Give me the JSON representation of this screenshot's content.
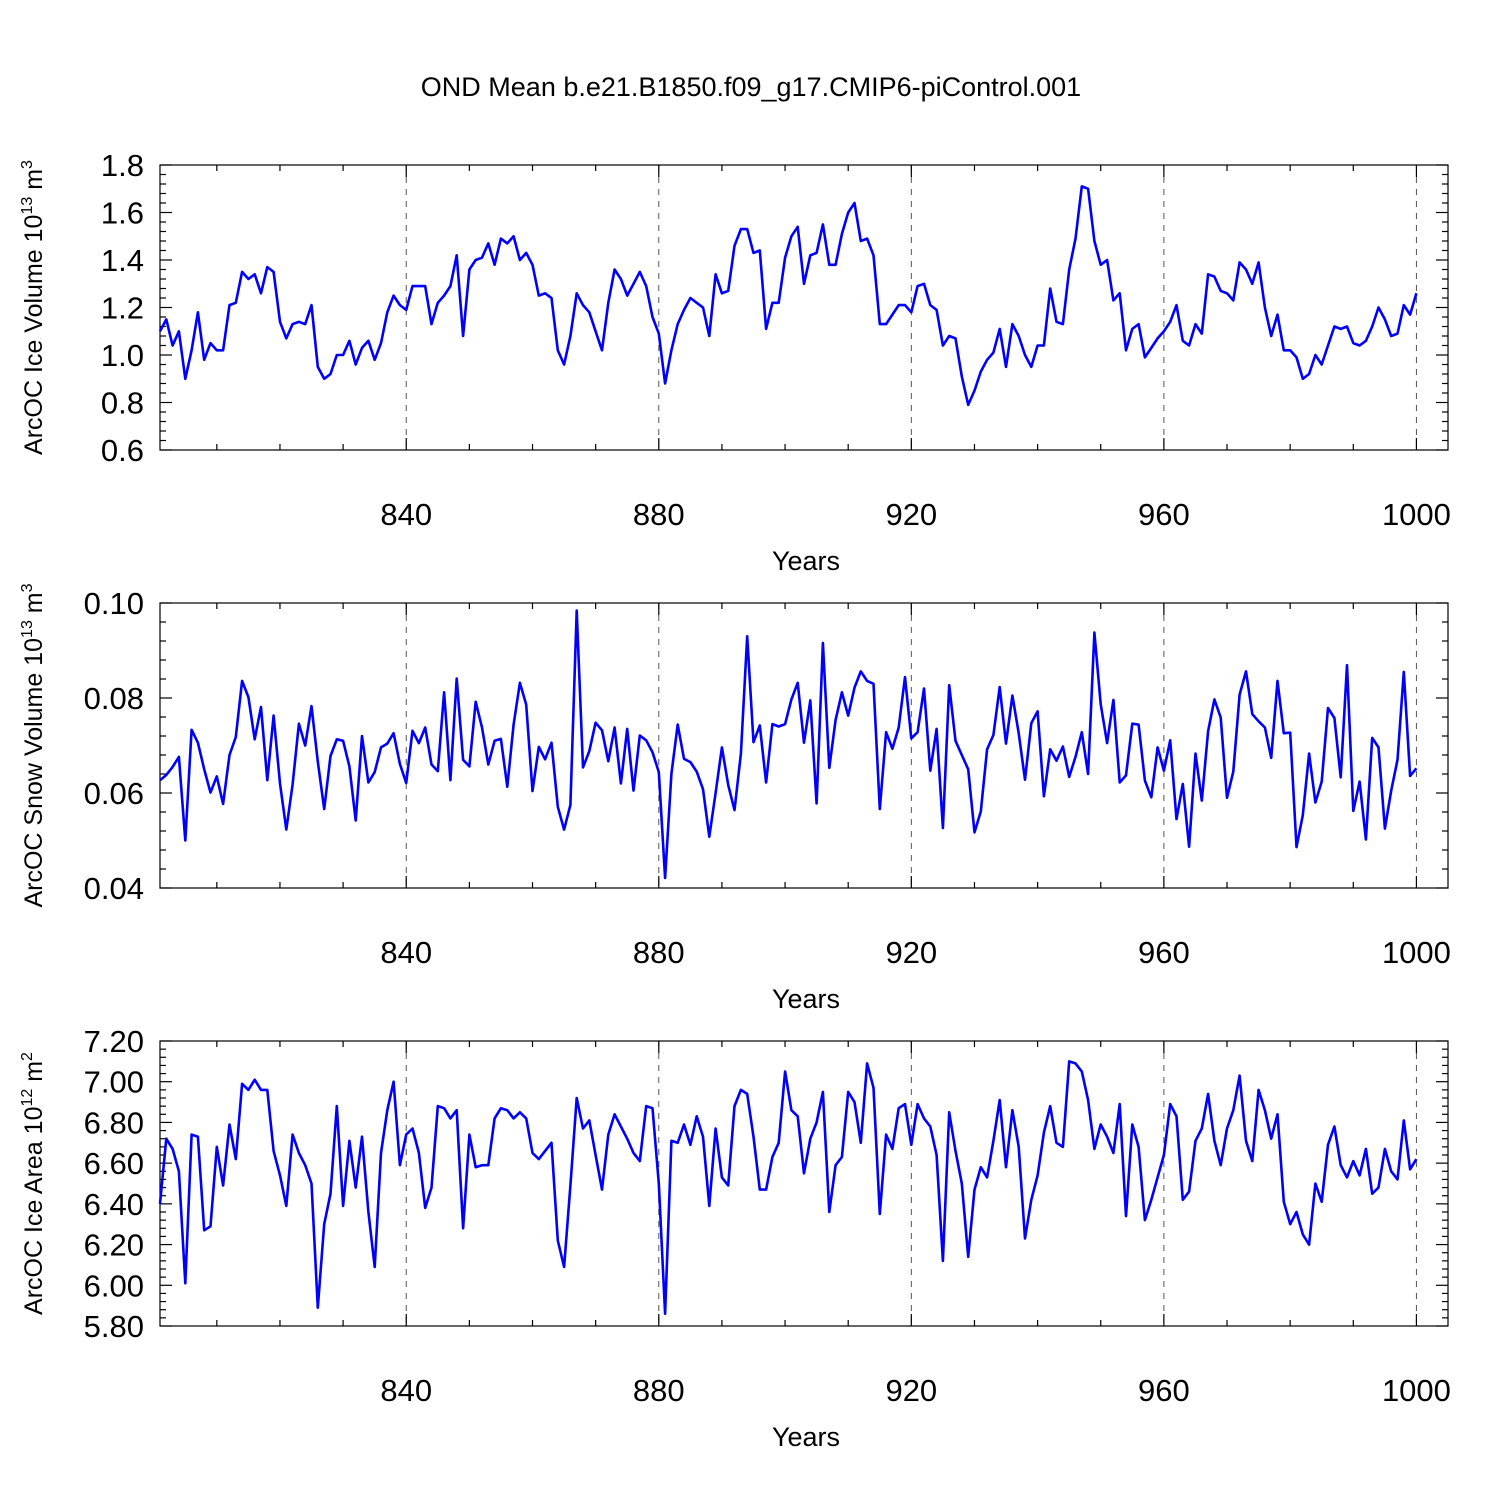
{
  "chart_data": [
    {
      "type": "line",
      "title": "OND Mean b.e21.B1850.f09_g17.CMIP6-piControl.001",
      "xlabel": "Years",
      "ylabel": "ArcOC Ice Volume 10",
      "ylabel_exp": "13",
      "ylabel_unit": " m",
      "ylabel_unit_exp": "3",
      "xlim": [
        801,
        1005
      ],
      "ylim": [
        0.6,
        1.8
      ],
      "xticks": [
        840,
        880,
        920,
        960,
        1000
      ],
      "xtick_labels": [
        "840",
        "880",
        "920",
        "960",
        "1000"
      ],
      "yticks": [
        0.6,
        0.8,
        1.0,
        1.2,
        1.4,
        1.6,
        1.8
      ],
      "ytick_labels": [
        "0.6",
        "0.8",
        "1.0",
        "1.2",
        "1.4",
        "1.6",
        "1.8"
      ],
      "grid": "dashed vertical at major x ticks",
      "series": [
        {
          "name": "ArcOC Ice Volume",
          "color": "#0000ff",
          "x_start": 801,
          "values": [
            1.1,
            1.15,
            1.04,
            1.1,
            0.9,
            1.02,
            1.18,
            0.98,
            1.05,
            1.02,
            1.02,
            1.21,
            1.22,
            1.35,
            1.32,
            1.34,
            1.26,
            1.37,
            1.35,
            1.14,
            1.07,
            1.13,
            1.14,
            1.13,
            1.21,
            0.95,
            0.9,
            0.92,
            1.0,
            1.0,
            1.06,
            0.96,
            1.03,
            1.06,
            0.98,
            1.05,
            1.18,
            1.25,
            1.21,
            1.19,
            1.29,
            1.29,
            1.29,
            1.13,
            1.22,
            1.25,
            1.29,
            1.42,
            1.08,
            1.36,
            1.4,
            1.41,
            1.47,
            1.38,
            1.49,
            1.47,
            1.5,
            1.4,
            1.43,
            1.38,
            1.25,
            1.26,
            1.24,
            1.02,
            0.96,
            1.08,
            1.26,
            1.21,
            1.18,
            1.1,
            1.02,
            1.22,
            1.36,
            1.32,
            1.25,
            1.3,
            1.35,
            1.29,
            1.16,
            1.09,
            0.88,
            1.02,
            1.13,
            1.19,
            1.24,
            1.22,
            1.2,
            1.08,
            1.34,
            1.26,
            1.27,
            1.46,
            1.53,
            1.53,
            1.43,
            1.44,
            1.11,
            1.22,
            1.22,
            1.41,
            1.5,
            1.54,
            1.3,
            1.42,
            1.43,
            1.55,
            1.38,
            1.38,
            1.51,
            1.6,
            1.64,
            1.48,
            1.49,
            1.42,
            1.13,
            1.13,
            1.17,
            1.21,
            1.21,
            1.18,
            1.29,
            1.3,
            1.21,
            1.19,
            1.04,
            1.08,
            1.07,
            0.91,
            0.79,
            0.85,
            0.93,
            0.98,
            1.01,
            1.11,
            0.95,
            1.13,
            1.08,
            1.0,
            0.95,
            1.04,
            1.04,
            1.28,
            1.14,
            1.13,
            1.36,
            1.49,
            1.71,
            1.7,
            1.48,
            1.38,
            1.4,
            1.23,
            1.26,
            1.02,
            1.11,
            1.13,
            0.99,
            1.03,
            1.07,
            1.1,
            1.14,
            1.21,
            1.06,
            1.04,
            1.13,
            1.09,
            1.34,
            1.33,
            1.27,
            1.26,
            1.23,
            1.39,
            1.36,
            1.3,
            1.39,
            1.2,
            1.08,
            1.17,
            1.02,
            1.02,
            0.99,
            0.9,
            0.92,
            1.0,
            0.96,
            1.04,
            1.12,
            1.11,
            1.12,
            1.05,
            1.04,
            1.06,
            1.12,
            1.2,
            1.15,
            1.08,
            1.09,
            1.21,
            1.17,
            1.26
          ]
        }
      ]
    },
    {
      "type": "line",
      "xlabel": "Years",
      "ylabel": "ArcOC Snow Volume 10",
      "ylabel_exp": "13",
      "ylabel_unit": " m",
      "ylabel_unit_exp": "3",
      "xlim": [
        801,
        1005
      ],
      "ylim": [
        0.04,
        0.1
      ],
      "xticks": [
        840,
        880,
        920,
        960,
        1000
      ],
      "xtick_labels": [
        "840",
        "880",
        "920",
        "960",
        "1000"
      ],
      "yticks": [
        0.04,
        0.06,
        0.08,
        0.1
      ],
      "ytick_labels": [
        "0.04",
        "0.06",
        "0.08",
        "0.10"
      ],
      "grid": "dashed vertical at major x ticks",
      "series": [
        {
          "name": "ArcOC Snow Volume",
          "color": "#0000ff",
          "x_start": 801,
          "values": [
            0.0627,
            0.0638,
            0.0655,
            0.0676,
            0.05,
            0.0733,
            0.0706,
            0.065,
            0.0601,
            0.0635,
            0.0577,
            0.068,
            0.0718,
            0.0836,
            0.0802,
            0.0713,
            0.0781,
            0.0627,
            0.0763,
            0.062,
            0.0523,
            0.0618,
            0.0746,
            0.07,
            0.0783,
            0.0666,
            0.0566,
            0.0678,
            0.0713,
            0.071,
            0.0656,
            0.0542,
            0.072,
            0.0622,
            0.0644,
            0.0696,
            0.0704,
            0.0726,
            0.0661,
            0.0621,
            0.0731,
            0.0705,
            0.0738,
            0.066,
            0.0646,
            0.0812,
            0.0627,
            0.0841,
            0.067,
            0.0656,
            0.0792,
            0.0738,
            0.066,
            0.071,
            0.0714,
            0.0613,
            0.0744,
            0.0832,
            0.0786,
            0.0604,
            0.0697,
            0.0671,
            0.0706,
            0.0571,
            0.0523,
            0.0575,
            0.0984,
            0.0654,
            0.0688,
            0.0748,
            0.0732,
            0.0667,
            0.0738,
            0.062,
            0.0735,
            0.0605,
            0.0721,
            0.0711,
            0.0686,
            0.0644,
            0.0421,
            0.064,
            0.0744,
            0.0672,
            0.0665,
            0.0645,
            0.0608,
            0.0508,
            0.06,
            0.0696,
            0.0617,
            0.0564,
            0.0683,
            0.093,
            0.0707,
            0.0742,
            0.0622,
            0.0745,
            0.074,
            0.0745,
            0.0797,
            0.0832,
            0.0706,
            0.0795,
            0.0578,
            0.0916,
            0.0653,
            0.0754,
            0.0812,
            0.0763,
            0.0822,
            0.0856,
            0.0836,
            0.083,
            0.0566,
            0.0728,
            0.0693,
            0.0738,
            0.0844,
            0.0715,
            0.0728,
            0.082,
            0.0647,
            0.0735,
            0.0526,
            0.0827,
            0.071,
            0.068,
            0.065,
            0.0517,
            0.0561,
            0.0692,
            0.0722,
            0.0823,
            0.0704,
            0.0805,
            0.0726,
            0.0628,
            0.0747,
            0.0772,
            0.0593,
            0.0692,
            0.0668,
            0.0698,
            0.0634,
            0.0676,
            0.0728,
            0.064,
            0.0938,
            0.0787,
            0.0705,
            0.0796,
            0.0622,
            0.0637,
            0.0746,
            0.0744,
            0.0626,
            0.0591,
            0.0696,
            0.0647,
            0.0711,
            0.0545,
            0.0619,
            0.0487,
            0.0683,
            0.0584,
            0.073,
            0.0797,
            0.0759,
            0.059,
            0.0645,
            0.0807,
            0.0856,
            0.0766,
            0.0751,
            0.0738,
            0.0674,
            0.0836,
            0.0726,
            0.0727,
            0.0486,
            0.0553,
            0.0683,
            0.058,
            0.0624,
            0.0779,
            0.0758,
            0.0633,
            0.0869,
            0.0562,
            0.0624,
            0.0502,
            0.0716,
            0.0696,
            0.0525,
            0.0605,
            0.067,
            0.0855,
            0.0636,
            0.0652
          ]
        }
      ]
    },
    {
      "type": "line",
      "xlabel": "Years",
      "ylabel": "ArcOC Ice Area 10",
      "ylabel_exp": "12",
      "ylabel_unit": " m",
      "ylabel_unit_exp": "2",
      "xlim": [
        801,
        1005
      ],
      "ylim": [
        5.8,
        7.2
      ],
      "xticks": [
        840,
        880,
        920,
        960,
        1000
      ],
      "xtick_labels": [
        "840",
        "880",
        "920",
        "960",
        "1000"
      ],
      "yticks": [
        5.8,
        6.0,
        6.2,
        6.4,
        6.6,
        6.8,
        7.0,
        7.2
      ],
      "ytick_labels": [
        "5.80",
        "6.00",
        "6.20",
        "6.40",
        "6.60",
        "6.80",
        "7.00",
        "7.20"
      ],
      "grid": "dashed vertical at major x ticks",
      "series": [
        {
          "name": "ArcOC Ice Area",
          "color": "#0000ff",
          "x_start": 801,
          "values": [
            6.4,
            6.72,
            6.67,
            6.56,
            6.01,
            6.74,
            6.73,
            6.27,
            6.29,
            6.68,
            6.49,
            6.79,
            6.62,
            6.99,
            6.96,
            7.01,
            6.96,
            6.96,
            6.66,
            6.54,
            6.39,
            6.74,
            6.65,
            6.59,
            6.5,
            5.89,
            6.3,
            6.45,
            6.88,
            6.39,
            6.71,
            6.48,
            6.73,
            6.36,
            6.09,
            6.65,
            6.86,
            7.0,
            6.59,
            6.74,
            6.77,
            6.65,
            6.38,
            6.48,
            6.88,
            6.87,
            6.82,
            6.86,
            6.28,
            6.74,
            6.58,
            6.59,
            6.59,
            6.82,
            6.87,
            6.86,
            6.82,
            6.85,
            6.82,
            6.65,
            6.62,
            6.66,
            6.7,
            6.22,
            6.09,
            6.49,
            6.92,
            6.77,
            6.81,
            6.64,
            6.47,
            6.74,
            6.84,
            6.78,
            6.72,
            6.65,
            6.61,
            6.88,
            6.87,
            6.5,
            5.86,
            6.71,
            6.7,
            6.79,
            6.69,
            6.83,
            6.73,
            6.39,
            6.77,
            6.53,
            6.49,
            6.88,
            6.96,
            6.94,
            6.73,
            6.47,
            6.47,
            6.63,
            6.7,
            7.05,
            6.86,
            6.83,
            6.55,
            6.72,
            6.8,
            6.95,
            6.36,
            6.59,
            6.63,
            6.95,
            6.9,
            6.7,
            7.09,
            6.97,
            6.35,
            6.74,
            6.67,
            6.87,
            6.89,
            6.69,
            6.89,
            6.82,
            6.78,
            6.64,
            6.12,
            6.85,
            6.66,
            6.5,
            6.14,
            6.47,
            6.58,
            6.53,
            6.71,
            6.91,
            6.58,
            6.86,
            6.68,
            6.23,
            6.42,
            6.54,
            6.75,
            6.88,
            6.7,
            6.68,
            7.1,
            7.09,
            7.05,
            6.91,
            6.67,
            6.79,
            6.73,
            6.65,
            6.89,
            6.34,
            6.79,
            6.68,
            6.32,
            6.42,
            6.53,
            6.64,
            6.89,
            6.83,
            6.42,
            6.46,
            6.71,
            6.77,
            6.94,
            6.71,
            6.59,
            6.77,
            6.86,
            7.03,
            6.71,
            6.61,
            6.96,
            6.86,
            6.72,
            6.84,
            6.41,
            6.3,
            6.36,
            6.25,
            6.2,
            6.5,
            6.41,
            6.69,
            6.78,
            6.59,
            6.53,
            6.61,
            6.54,
            6.67,
            6.45,
            6.48,
            6.67,
            6.56,
            6.52,
            6.81,
            6.57,
            6.62
          ]
        }
      ]
    }
  ]
}
